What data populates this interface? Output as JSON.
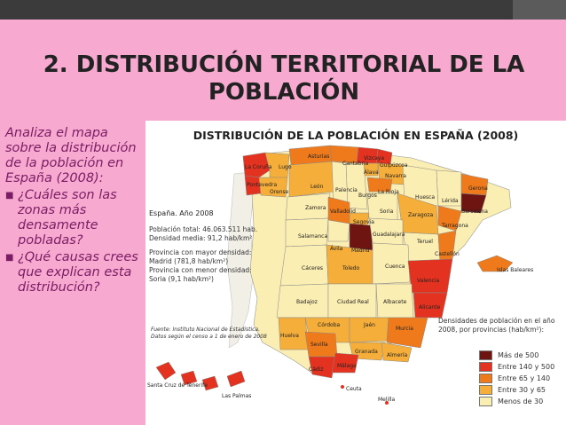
{
  "slide": {
    "title": "2. DISTRIBUCIÓN TERRITORIAL DE LA POBLACIÓN",
    "intro": "Analiza el mapa sobre la distribución de la población en España (2008):",
    "bullets": [
      "¿Cuáles son las zonas más densamente pobladas?",
      "¿Qué causas crees que explican esta distribución?"
    ],
    "colors": {
      "background": "#f7a9cf",
      "text": "#7a1d66",
      "topbar": "#3b3b3b"
    }
  },
  "map": {
    "title": "DISTRIBUCIÓN DE LA POBLACIÓN EN ESPAÑA (2008)",
    "year_label": "España. Año 2008",
    "stats": [
      "Población total: 46.063.511 hab.",
      "Densidad media: 91,2 hab/km²",
      "Provincia con mayor densidad:",
      "Madrid (781,8 hab/km²)",
      "Provincia con menor densidad:",
      "Soria (9,1 hab/km²)"
    ],
    "source": [
      "Fuente: Instituto Nacional de Estadística.",
      "Datos según el censo a 1 de enero de 2008"
    ],
    "legend_title": [
      "Densidades de población en el año",
      "2008, por provincias (hab/km²):"
    ],
    "legend": [
      {
        "label": "Más de 500",
        "color": "#6e1512"
      },
      {
        "label": "Entre 140 y 500",
        "color": "#e3321f"
      },
      {
        "label": "Entre 65 y 140",
        "color": "#ef7a1c"
      },
      {
        "label": "Entre 30 y 65",
        "color": "#f5ae3a"
      },
      {
        "label": "Menos de 30",
        "color": "#fbeeb2"
      }
    ],
    "labels": {
      "asturias": "Asturias",
      "cantabria": "Cantabria",
      "vizcaya": "Vizcaya",
      "guipuzcoa": "Guipúzcoa",
      "alava": "Álava",
      "navarra": "Navarra",
      "la_coruna": "La Coruña",
      "lugo": "Lugo",
      "pontevedra": "Pontevedra",
      "orense": "Orense",
      "leon": "León",
      "palencia": "Palencia",
      "burgos": "Burgos",
      "la_rioja": "La Rioja",
      "huesca": "Huesca",
      "gerona": "Gerona",
      "lerida": "Lérida",
      "barcelona": "Barcelona",
      "zamora": "Zamora",
      "valladolid": "Valladolid",
      "soria": "Soria",
      "zaragoza": "Zaragoza",
      "tarragona": "Tarragona",
      "segovia": "Segovia",
      "salamanca": "Salamanca",
      "avila": "Ávila",
      "madrid": "Madrid",
      "guadalajara": "Guadalajara",
      "teruel": "Teruel",
      "castellon": "Castellón",
      "islas_baleares": "Islas Baleares",
      "caceres": "Cáceres",
      "toledo": "Toledo",
      "cuenca": "Cuenca",
      "valencia": "Valencia",
      "badajoz": "Badajoz",
      "ciudad_real": "Ciudad Real",
      "albacete": "Albacete",
      "alicante": "Alicante",
      "cordoba": "Córdoba",
      "jaen": "Jaén",
      "murcia": "Murcia",
      "huelva": "Huelva",
      "sevilla": "Sevilla",
      "granada": "Granada",
      "almeria": "Almería",
      "cadiz": "Cádiz",
      "malaga": "Málaga",
      "ceuta": "Ceuta",
      "melilla": "Melilla",
      "sc_tenerife": "Santa Cruz de Tenerife",
      "las_palmas": "Las Palmas"
    }
  }
}
